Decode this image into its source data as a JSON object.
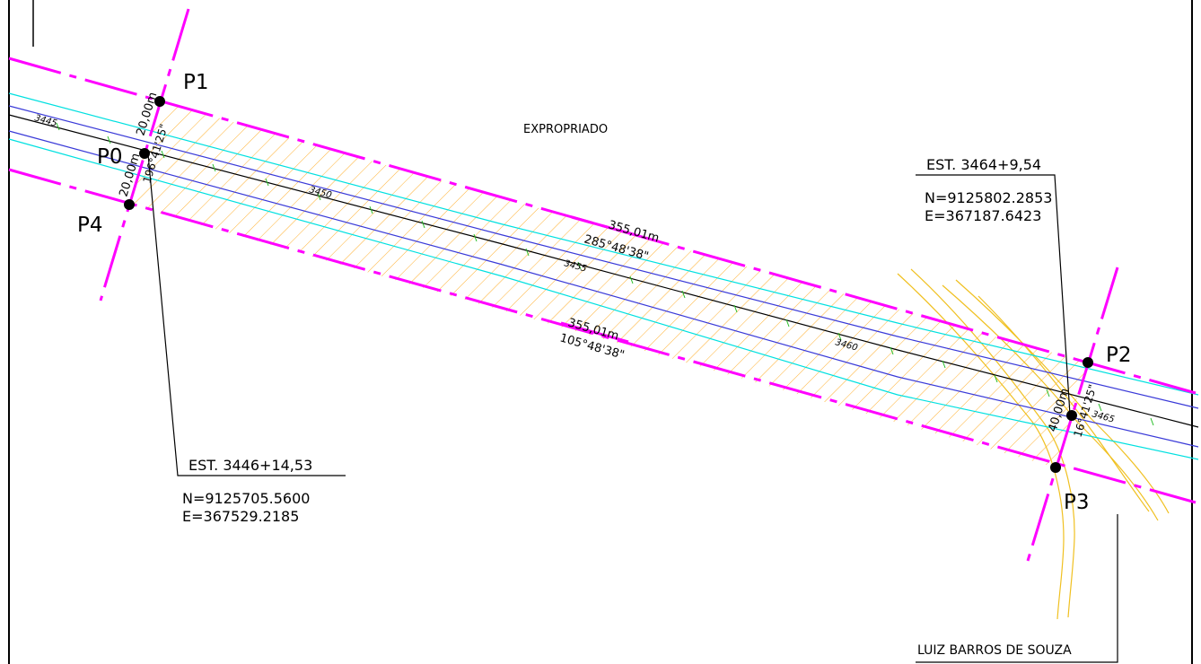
{
  "drawing": {
    "area_label": "EXPROPRIADO",
    "owner_label": "LUIZ BARROS DE SOUZA",
    "points": {
      "p0": "P0",
      "p1": "P1",
      "p2": "P2",
      "p3": "P3",
      "p4": "P4"
    },
    "start_station": {
      "label": "EST. 3446+14,53",
      "north": "N=9125705.5600",
      "east": "E=367529.2185"
    },
    "end_station": {
      "label": "EST. 3464+9,54",
      "north": "N=9125802.2853",
      "east": "E=367187.6423"
    },
    "top_boundary": {
      "length": "355,01m",
      "bearing": "285°48'38\""
    },
    "bottom_boundary": {
      "length": "355,01m",
      "bearing": "105°48'38\""
    },
    "left_widths": {
      "upper": "20,00m",
      "lower": "20,00m",
      "angle": "196°41'25\""
    },
    "right_width": {
      "total": "40,00m",
      "angle": "16°41'25\""
    },
    "stations": {
      "s3445": "3445",
      "s3450": "3450",
      "s3455": "3455",
      "s3460": "3460",
      "s3465": "3465"
    },
    "colors": {
      "boundary": "#ff00ff",
      "hatch": "#ffb030",
      "edge_cyan": "#00e0e0",
      "lane_blue": "#3a3ad8",
      "road_center": "#000000",
      "stream": "#f0c020",
      "tick": "#22bb22"
    }
  }
}
